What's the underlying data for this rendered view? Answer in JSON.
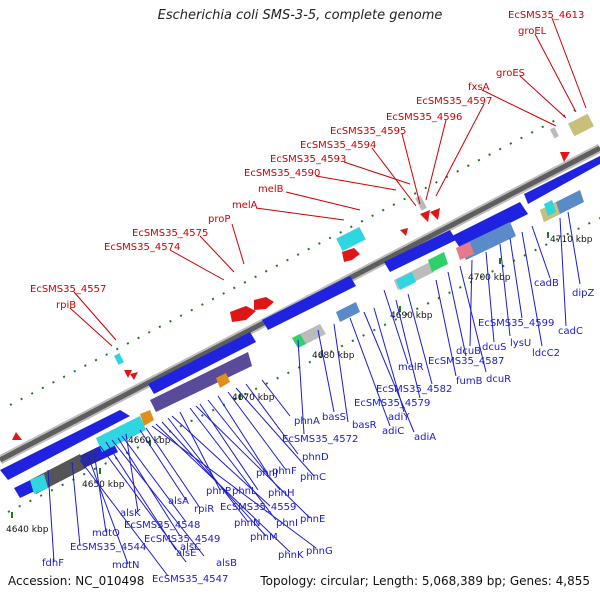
{
  "title": "Escherichia coli SMS-3-5, complete genome",
  "footer": {
    "accession": "Accession: NC_010498",
    "summary": "Topology: circular; Length: 5,068,389 bp; Genes: 4,855"
  },
  "colors": {
    "label_red": "#cc0000",
    "label_blue": "#1c1ccc",
    "gene_blue": "#1f23e0",
    "backbone_dark": "#555555",
    "backbone_light": "#c8c8c8",
    "tick_green": "#1f7a1f"
  },
  "scale_ticks": [
    "4640 kbp",
    "4650 kbp",
    "4660 kbp",
    "4670 kbp",
    "4680 kbp",
    "4690 kbp",
    "4700 kbp",
    "4710 kbp"
  ],
  "top_labels": [
    "EcSMS35_4613",
    "groEL",
    "groES",
    "fxsA",
    "EcSMS35_4597",
    "EcSMS35_4596",
    "EcSMS35_4595",
    "EcSMS35_4594",
    "EcSMS35_4593",
    "EcSMS35_4590",
    "melB",
    "melA",
    "proP",
    "EcSMS35_4575",
    "EcSMS35_4574",
    "EcSMS35_4557",
    "rpiB"
  ],
  "bottom_labels": [
    "dipZ",
    "cadC",
    "cadB",
    "ldcC2",
    "EcSMS35_4599",
    "lysU",
    "dcuS",
    "dcuB",
    "dcuR",
    "EcSMS35_4587",
    "fumB",
    "melR",
    "EcSMS35_4582",
    "EcSMS35_4579",
    "adiY",
    "adiA",
    "adiC",
    "basR",
    "basS",
    "EcSMS35_4572",
    "phnA",
    "phnD",
    "phnC",
    "phnF",
    "phnJ",
    "phnH",
    "phnL",
    "phnE",
    "phnI",
    "phnP",
    "EcSMS35_4559",
    "phnN",
    "phnM",
    "phnK",
    "phnG",
    "rpiR",
    "alsA",
    "alsK",
    "EcSMS35_4548",
    "EcSMS35_4549",
    "alsC",
    "alsB",
    "alsE",
    "mdtO",
    "EcSMS35_4544",
    "mdtN",
    "EcSMS35_4547",
    "fdhF"
  ]
}
